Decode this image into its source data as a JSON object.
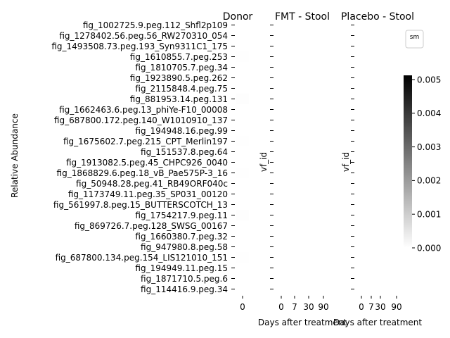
{
  "chart_data": [
    {
      "type": "heatmap",
      "title": "Donor",
      "xlabel": "",
      "ylabel": "Relative Abundance",
      "x": [
        "0"
      ],
      "rows": [
        "fig_1002725.9.peg.112_Shfl2p109",
        "fig_1278402.56.peg.56_RW270310_054",
        "fig_1493508.73.peg.193_Syn9311C1_175",
        "fig_1610855.7.peg.253",
        "fig_1810705.7.peg.34",
        "fig_1923890.5.peg.262",
        "fig_2115848.4.peg.75",
        "fig_881953.14.peg.131",
        "fig_1662463.6.peg.13_phiYe-F10_00008",
        "fig_687800.172.peg.140_W1010910_137",
        "fig_194948.16.peg.99",
        "fig_1675602.7.peg.215_CPT_Merlin197",
        "fig_151537.8.peg.64",
        "fig_1913082.5.peg.45_CHPC926_0040",
        "fig_1868829.6.peg.18_vB_Pae575P-3_16",
        "fig_50948.28.peg.41_RB49ORF040c",
        "fig_1173749.11.peg.35_SP031_00120",
        "fig_561997.8.peg.15_BUTTERSCOTCH_13",
        "fig_1754217.9.peg.11",
        "fig_869726.7.peg.128_SWSG_00167",
        "fig_1660380.7.peg.32",
        "fig_947980.8.peg.58",
        "fig_687800.134.peg.154_LIS121010_151",
        "fig_194949.11.peg.15",
        "fig_1871710.5.peg.6",
        "fig_114416.9.peg.34"
      ],
      "values": [
        [
          0
        ],
        [
          0
        ],
        [
          0
        ],
        [
          2e-05
        ],
        [
          0
        ],
        [
          0
        ],
        [
          0
        ],
        [
          3e-05
        ],
        [
          0
        ],
        [
          0
        ],
        [
          0
        ],
        [
          2e-05
        ],
        [
          0
        ],
        [
          0
        ],
        [
          2e-05
        ],
        [
          0
        ],
        [
          0
        ],
        [
          0
        ],
        [
          3e-05
        ],
        [
          0
        ],
        [
          0
        ],
        [
          0
        ],
        [
          2e-05
        ],
        [
          0
        ],
        [
          0
        ],
        [
          0
        ]
      ],
      "vmin": 0,
      "vmax": 0.005
    },
    {
      "type": "heatmap",
      "title": "FMT - Stool",
      "xlabel": "Days after treatment",
      "ylabel": "vf_id",
      "x": [
        "0",
        "7",
        "30",
        "90"
      ],
      "values": [
        [
          0,
          0,
          0,
          0
        ],
        [
          0,
          0,
          0,
          0
        ],
        [
          0,
          0,
          0,
          0
        ],
        [
          0,
          0,
          0,
          0
        ],
        [
          0,
          0,
          0,
          0
        ],
        [
          0,
          0,
          0,
          0
        ],
        [
          0,
          0,
          0,
          0
        ],
        [
          0,
          0,
          0,
          0
        ],
        [
          0,
          0,
          0,
          0
        ],
        [
          0,
          0,
          0,
          0
        ],
        [
          0,
          0,
          0,
          0
        ],
        [
          0,
          0,
          0,
          0
        ],
        [
          0,
          0,
          0,
          0
        ],
        [
          0,
          0,
          0,
          0
        ],
        [
          0,
          0,
          0,
          0
        ],
        [
          0,
          0,
          0,
          0
        ],
        [
          0,
          0,
          0,
          0
        ],
        [
          0,
          0,
          0,
          0
        ],
        [
          0,
          0,
          0,
          0
        ],
        [
          0,
          0,
          0,
          0
        ],
        [
          0,
          0,
          0,
          0
        ],
        [
          0,
          0,
          0,
          0
        ],
        [
          0,
          0,
          0,
          0
        ],
        [
          0,
          0,
          0,
          0
        ],
        [
          0,
          0,
          0,
          0
        ],
        [
          0,
          0,
          0,
          0
        ]
      ],
      "vmin": 0,
      "vmax": 0.005
    },
    {
      "type": "heatmap",
      "title": "Placebo - Stool",
      "xlabel": "Days after treatment",
      "ylabel": "vf_id",
      "x": [
        "0",
        "7",
        "30",
        "90"
      ],
      "values": [
        [
          0,
          0,
          0,
          0
        ],
        [
          0,
          0,
          0,
          0
        ],
        [
          0,
          0,
          0,
          0
        ],
        [
          0,
          0,
          0,
          0
        ],
        [
          0,
          0,
          0,
          0
        ],
        [
          0,
          0,
          0,
          0
        ],
        [
          0,
          0,
          0,
          0
        ],
        [
          0,
          0,
          0,
          0
        ],
        [
          0,
          0,
          0,
          0
        ],
        [
          0,
          0,
          0,
          0
        ],
        [
          0,
          0,
          0,
          0
        ],
        [
          0,
          0,
          0,
          0
        ],
        [
          0,
          0,
          0,
          0
        ],
        [
          0,
          0,
          0,
          0
        ],
        [
          0,
          0,
          0,
          0
        ],
        [
          0,
          0,
          0,
          0
        ],
        [
          0,
          0,
          0,
          0
        ],
        [
          0,
          0,
          0,
          0
        ],
        [
          0,
          0,
          0,
          0
        ],
        [
          0,
          0,
          0,
          0
        ],
        [
          0,
          0,
          0,
          0
        ],
        [
          0,
          0,
          0,
          0
        ],
        [
          0,
          0,
          0,
          0
        ],
        [
          0,
          0,
          0,
          0
        ],
        [
          0,
          0,
          0,
          0
        ],
        [
          0,
          0,
          0,
          0
        ]
      ],
      "vmin": 0,
      "vmax": 0.005
    }
  ],
  "colorbar": {
    "ticks": [
      "0.000",
      "0.001",
      "0.002",
      "0.003",
      "0.004",
      "0.005"
    ],
    "tick_values": [
      0,
      0.001,
      0.002,
      0.003,
      0.004,
      0.005
    ],
    "vmin": 0,
    "vmax": 0.005,
    "color_low": "#ffffff",
    "color_high": "#000000"
  },
  "legend": {
    "label": "sm",
    "placement": "top-right"
  }
}
